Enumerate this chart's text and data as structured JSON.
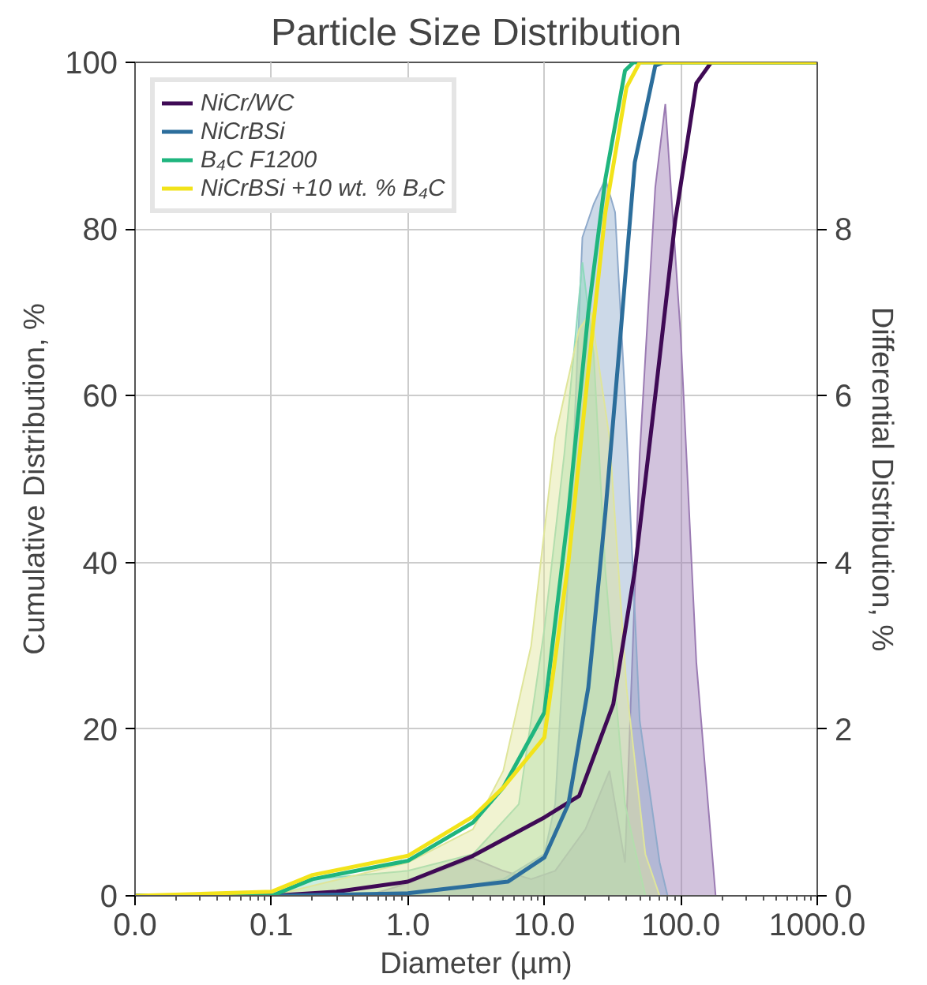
{
  "chart_data": {
    "type": "line",
    "title": "Particle Size Distribution",
    "xlabel": "Diameter (µm)",
    "ylabel": "Cumulative Distribution, %",
    "y2label": "Differential Distribution, %",
    "log": "x",
    "grid": true,
    "legend": "top left",
    "xlim": [
      0.01,
      1000
    ],
    "xticks": [
      {
        "value": 0.01,
        "label": "0.0"
      },
      {
        "value": 0.1,
        "label": "0.1"
      },
      {
        "value": 1,
        "label": "1.0"
      },
      {
        "value": 10,
        "label": "10.0"
      },
      {
        "value": 100,
        "label": "100.0"
      },
      {
        "value": 1000,
        "label": "1000.0"
      }
    ],
    "ylim": [
      0,
      100
    ],
    "yticks": [
      0,
      20,
      40,
      60,
      80,
      100
    ],
    "y2lim": [
      0,
      10
    ],
    "y2ticks": [
      0,
      2,
      4,
      6,
      8
    ],
    "series": [
      {
        "type": "area",
        "axis": "y2",
        "color": "#9b7bb3",
        "x": [
          0.5,
          1,
          3,
          5,
          8,
          12,
          20,
          30,
          39,
          50,
          65,
          77,
          100,
          130,
          180
        ],
        "values": [
          0,
          0.15,
          0.45,
          0.3,
          0.2,
          0.3,
          0.8,
          1.5,
          0.4,
          5.3,
          8.5,
          9.5,
          6.7,
          2.8,
          0
        ]
      },
      {
        "type": "area",
        "axis": "y2",
        "color": "#8faacb",
        "x": [
          1,
          5,
          10,
          12,
          15,
          19,
          23,
          28,
          33,
          39,
          50,
          70,
          80
        ],
        "values": [
          0,
          0.2,
          0.5,
          1.1,
          3.9,
          7.9,
          8.3,
          8.6,
          8.2,
          6.0,
          2.1,
          0.4,
          0
        ]
      },
      {
        "type": "area",
        "axis": "y2",
        "color": "#8ed9bd",
        "x": [
          0.1,
          0.2,
          1,
          3,
          6.5,
          10,
          14,
          19,
          23,
          28,
          39,
          55
        ],
        "values": [
          0,
          0.2,
          0.3,
          0.5,
          1.1,
          3.2,
          5.3,
          7.6,
          6.5,
          3.9,
          1.1,
          0
        ]
      },
      {
        "type": "area",
        "axis": "y2",
        "color": "#dfe59a",
        "x": [
          0.1,
          1,
          3,
          5,
          8,
          12,
          18,
          22,
          30,
          40,
          55,
          70
        ],
        "values": [
          0,
          0.4,
          0.8,
          1.5,
          3,
          5.5,
          6.8,
          7.0,
          5.5,
          2.5,
          0.5,
          0
        ]
      },
      {
        "name": "NiCr/WC",
        "axis": "y",
        "color": "#3f0a55",
        "x": [
          0.01,
          0.1,
          0.3,
          1,
          3,
          10,
          18,
          32,
          46,
          65,
          91,
          130,
          167,
          1000
        ],
        "values": [
          0,
          0,
          0.5,
          1.7,
          4.8,
          9.4,
          12,
          23,
          39,
          60,
          81,
          97.5,
          100,
          100
        ]
      },
      {
        "name": "NiCrBSi",
        "axis": "y",
        "color": "#2c6e9c",
        "x": [
          0.01,
          0.1,
          1,
          5.4,
          10,
          15,
          21,
          28,
          36,
          46,
          65,
          75,
          1000
        ],
        "values": [
          0,
          0,
          0.3,
          1.7,
          4.6,
          11,
          25,
          46,
          67,
          88,
          99.6,
          100,
          100
        ]
      },
      {
        "name": "B₄C F1200",
        "axis": "y",
        "color": "#1fb57e",
        "x": [
          0.01,
          0.1,
          0.2,
          1,
          3,
          5,
          10,
          15,
          21,
          28,
          39,
          45,
          1000
        ],
        "values": [
          0,
          0,
          2,
          4.2,
          8.8,
          13,
          22,
          46,
          70,
          86,
          99,
          100,
          100
        ]
      },
      {
        "name": "NiCrBSi +10 wt. % B₄C",
        "axis": "y",
        "color": "#f2e31a",
        "x": [
          0.01,
          0.1,
          0.2,
          1,
          3,
          5,
          10,
          15,
          21,
          28,
          40,
          50,
          1000
        ],
        "values": [
          0,
          0.5,
          2.5,
          4.8,
          9.5,
          13,
          19,
          40,
          63,
          82,
          97,
          100,
          100
        ]
      }
    ]
  }
}
